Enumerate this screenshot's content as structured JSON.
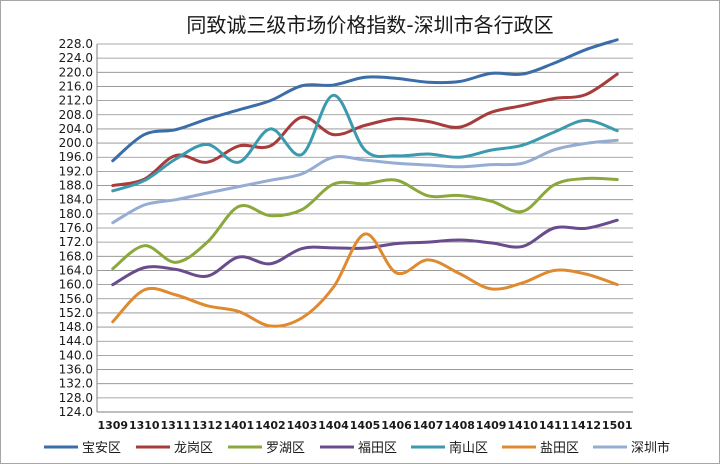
{
  "chart_data": {
    "type": "line",
    "title": "同致诚三级市场价格指数-深圳市各行政区",
    "xlabel": "",
    "ylabel": "",
    "categories": [
      "1309",
      "1310",
      "1311",
      "1312",
      "1401",
      "1402",
      "1403",
      "1404",
      "1405",
      "1406",
      "1407",
      "1408",
      "1409",
      "1410",
      "1411",
      "1412",
      "1501"
    ],
    "ylim": [
      124,
      228
    ],
    "ytick_step": 4,
    "ytick_labels": [
      "124.0",
      "128.0",
      "132.0",
      "136.0",
      "140.0",
      "144.0",
      "148.0",
      "152.0",
      "156.0",
      "160.0",
      "164.0",
      "168.0",
      "172.0",
      "176.0",
      "180.0",
      "184.0",
      "188.0",
      "192.0",
      "196.0",
      "200.0",
      "204.0",
      "208.0",
      "212.0",
      "216.0",
      "220.0",
      "224.0",
      "228.0"
    ],
    "grid": true,
    "legend_position": "bottom",
    "series": [
      {
        "name": "宝安区",
        "color": "#3b6da8",
        "values": [
          195.0,
          202.4,
          203.8,
          206.8,
          209.4,
          212.0,
          216.2,
          216.4,
          218.6,
          218.3,
          217.2,
          217.4,
          219.7,
          219.5,
          222.6,
          226.4,
          229.2
        ]
      },
      {
        "name": "龙岗区",
        "color": "#a83b3b",
        "values": [
          188.0,
          189.8,
          196.5,
          194.6,
          199.2,
          199.2,
          207.3,
          202.4,
          205.0,
          206.9,
          206.1,
          204.5,
          208.7,
          210.6,
          212.6,
          213.7,
          219.5
        ]
      },
      {
        "name": "罗湖区",
        "color": "#8aa83b",
        "values": [
          164.5,
          171.0,
          166.3,
          172.0,
          182.1,
          179.5,
          181.2,
          188.4,
          188.5,
          189.5,
          185.1,
          185.2,
          183.6,
          180.7,
          188.2,
          190.0,
          189.7
        ]
      },
      {
        "name": "福田区",
        "color": "#6a4c8c",
        "values": [
          160.0,
          164.8,
          164.3,
          162.4,
          167.8,
          165.9,
          170.2,
          170.4,
          170.3,
          171.6,
          172.0,
          172.6,
          171.8,
          170.8,
          176.0,
          175.9,
          178.2
        ]
      },
      {
        "name": "南山区",
        "color": "#3b9aad",
        "values": [
          186.5,
          189.4,
          195.5,
          199.6,
          194.6,
          204.0,
          196.8,
          213.5,
          198.0,
          196.4,
          196.9,
          196.0,
          198.0,
          199.4,
          203.1,
          206.4,
          203.5
        ]
      },
      {
        "name": "盐田区",
        "color": "#e08a30",
        "values": [
          149.5,
          158.5,
          157.1,
          154.0,
          152.4,
          148.3,
          150.6,
          159.3,
          174.3,
          163.3,
          167.0,
          163.1,
          158.8,
          160.5,
          164.0,
          163.0,
          160.0
        ]
      },
      {
        "name": "深圳市",
        "color": "#95add3",
        "values": [
          177.5,
          182.5,
          184.0,
          185.9,
          187.7,
          189.5,
          191.3,
          196.0,
          195.2,
          194.3,
          193.8,
          193.3,
          193.9,
          194.3,
          198.1,
          199.9,
          200.8
        ]
      }
    ]
  }
}
